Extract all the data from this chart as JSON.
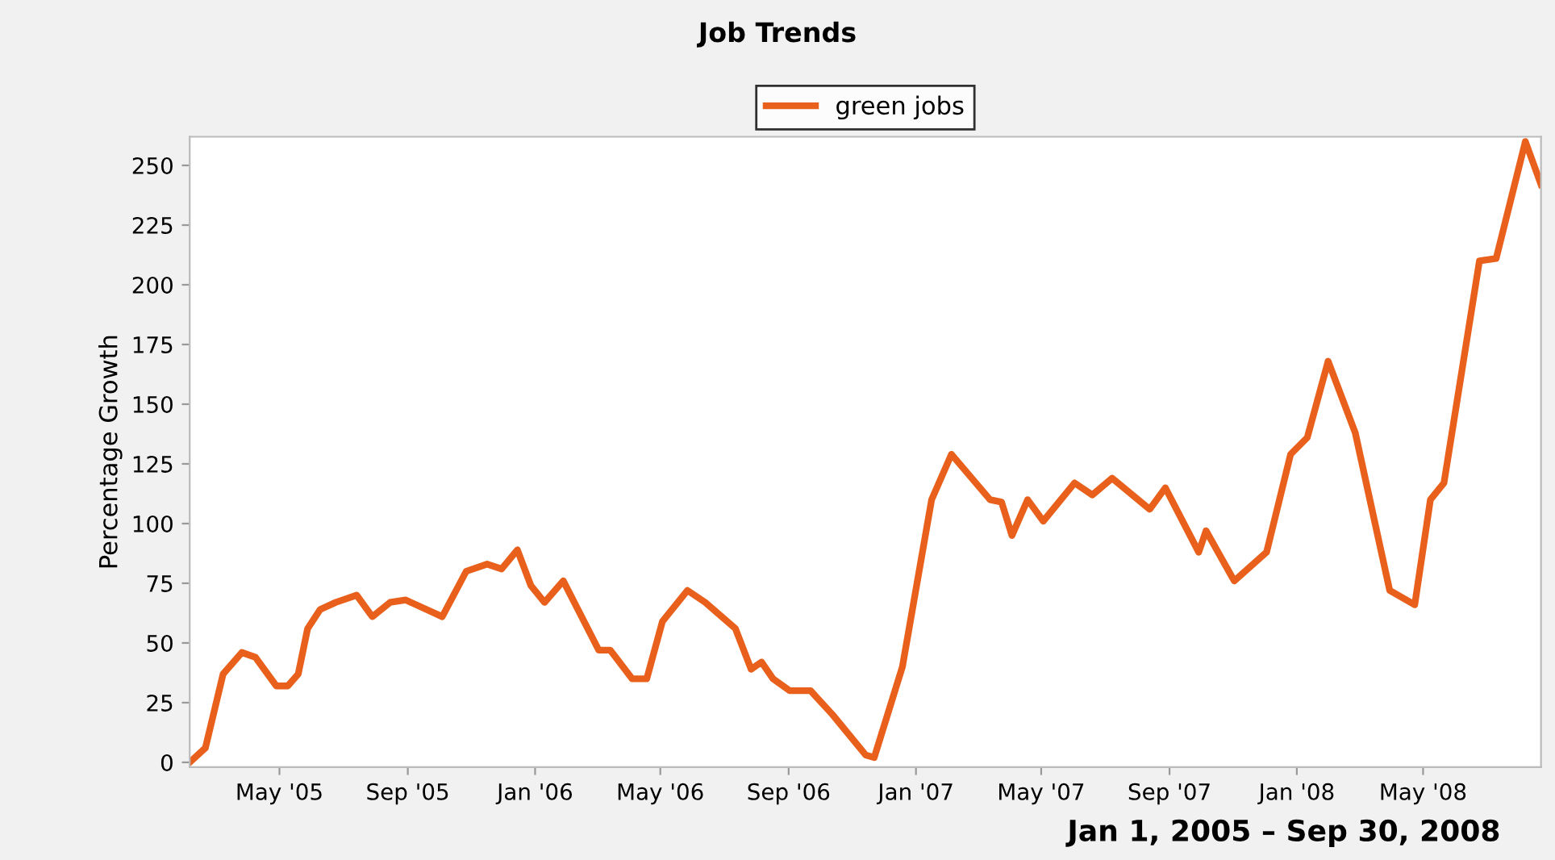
{
  "chart_data": {
    "type": "line",
    "title": "Job Trends",
    "ylabel": "Percentage Growth",
    "legend": "top",
    "grid": false,
    "marker": "none",
    "line_style": "solid",
    "annotations": [
      "Jan 1, 2005 – Sep 30, 2008"
    ],
    "xlim": [
      "2005-02-04",
      "2008-08-22"
    ],
    "xticks": [
      {
        "value": "2005-05-01",
        "label": "May '05"
      },
      {
        "value": "2005-09-01",
        "label": "Sep '05"
      },
      {
        "value": "2006-01-01",
        "label": "Jan '06"
      },
      {
        "value": "2006-05-01",
        "label": "May '06"
      },
      {
        "value": "2006-09-01",
        "label": "Sep '06"
      },
      {
        "value": "2007-01-01",
        "label": "Jan '07"
      },
      {
        "value": "2007-05-01",
        "label": "May '07"
      },
      {
        "value": "2007-09-01",
        "label": "Sep '07"
      },
      {
        "value": "2008-01-01",
        "label": "Jan '08"
      },
      {
        "value": "2008-05-01",
        "label": "May '08"
      }
    ],
    "ylim": [
      -2,
      262
    ],
    "yticks": [
      0,
      25,
      50,
      75,
      100,
      125,
      150,
      175,
      200,
      225,
      250
    ],
    "series": [
      {
        "name": "green jobs",
        "color": "#e8601c",
        "x": [
          "2005-02-04",
          "2005-02-19",
          "2005-03-08",
          "2005-03-26",
          "2005-04-08",
          "2005-04-28",
          "2005-05-09",
          "2005-05-19",
          "2005-05-28",
          "2005-06-09",
          "2005-06-24",
          "2005-07-14",
          "2005-07-29",
          "2005-08-15",
          "2005-08-30",
          "2005-10-04",
          "2005-10-27",
          "2005-11-16",
          "2005-11-30",
          "2005-12-15",
          "2005-12-28",
          "2006-01-10",
          "2006-01-28",
          "2006-03-03",
          "2006-03-14",
          "2006-04-04",
          "2006-04-18",
          "2006-05-03",
          "2006-05-27",
          "2006-06-13",
          "2006-07-12",
          "2006-07-27",
          "2006-08-06",
          "2006-08-17",
          "2006-09-02",
          "2006-09-22",
          "2006-10-13",
          "2006-11-14",
          "2006-11-22",
          "2006-12-19",
          "2007-01-16",
          "2007-02-04",
          "2007-03-13",
          "2007-03-24",
          "2007-04-03",
          "2007-04-18",
          "2007-05-03",
          "2007-06-02",
          "2007-06-19",
          "2007-07-08",
          "2007-08-13",
          "2007-08-28",
          "2007-09-29",
          "2007-10-06",
          "2007-11-02",
          "2007-12-03",
          "2007-12-26",
          "2008-01-11",
          "2008-01-31",
          "2008-02-26",
          "2008-03-30",
          "2008-04-23",
          "2008-05-08",
          "2008-05-21",
          "2008-06-24",
          "2008-07-10",
          "2008-08-07",
          "2008-08-22"
        ],
        "values": [
          0,
          6,
          37,
          46,
          44,
          32,
          32,
          37,
          56,
          64,
          67,
          70,
          61,
          67,
          68,
          61,
          80,
          83,
          81,
          89,
          74,
          67,
          76,
          47,
          47,
          35,
          35,
          59,
          72,
          67,
          56,
          39,
          42,
          35,
          30,
          30,
          20,
          3,
          2,
          40,
          110,
          129,
          110,
          109,
          95,
          110,
          101,
          117,
          112,
          119,
          106,
          115,
          88,
          97,
          76,
          88,
          129,
          136,
          168,
          138,
          72,
          66,
          110,
          117,
          210,
          211,
          260,
          242
        ]
      }
    ]
  }
}
